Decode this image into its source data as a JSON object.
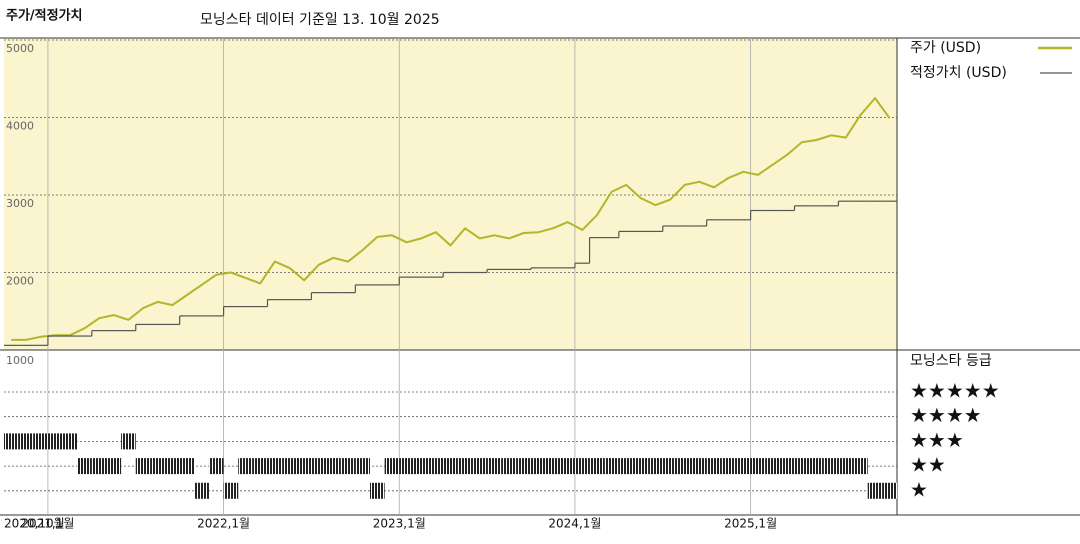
{
  "chart_data": {
    "type": "line",
    "title": "주가/적정가치",
    "subtitle": "모닝스타 데이터 기준일 13. 10월 2025",
    "x": [
      "2020-10",
      "2020-11",
      "2020-12",
      "2021-01",
      "2021-02",
      "2021-03",
      "2021-04",
      "2021-05",
      "2021-06",
      "2021-07",
      "2021-08",
      "2021-09",
      "2021-10",
      "2021-11",
      "2021-12",
      "2022-01",
      "2022-02",
      "2022-03",
      "2022-04",
      "2022-05",
      "2022-06",
      "2022-07",
      "2022-08",
      "2022-09",
      "2022-10",
      "2022-11",
      "2022-12",
      "2023-01",
      "2023-02",
      "2023-03",
      "2023-04",
      "2023-05",
      "2023-06",
      "2023-07",
      "2023-08",
      "2023-09",
      "2023-10",
      "2023-11",
      "2023-12",
      "2024-01",
      "2024-02",
      "2024-03",
      "2024-04",
      "2024-05",
      "2024-06",
      "2024-07",
      "2024-08",
      "2024-09",
      "2024-10",
      "2024-11",
      "2024-12",
      "2025-01",
      "2025-02",
      "2025-03",
      "2025-04",
      "2025-05",
      "2025-06",
      "2025-07",
      "2025-08",
      "2025-09",
      "2025-10"
    ],
    "series": [
      {
        "name": "주가 (USD)",
        "color": "#b3b52a",
        "step": false,
        "values": [
          1130,
          1130,
          1170,
          1190,
          1190,
          1280,
          1410,
          1450,
          1390,
          1540,
          1620,
          1580,
          1710,
          1840,
          1970,
          2000,
          1930,
          1860,
          2140,
          2060,
          1900,
          2100,
          2190,
          2140,
          2290,
          2460,
          2480,
          2390,
          2440,
          2520,
          2350,
          2570,
          2440,
          2480,
          2440,
          2510,
          2520,
          2570,
          2650,
          2550,
          2740,
          3040,
          3130,
          2960,
          2870,
          2940,
          3130,
          3170,
          3100,
          3220,
          3300,
          3260,
          3390,
          3520,
          3680,
          3710,
          3770,
          3740,
          4030,
          4250,
          3990
        ]
      },
      {
        "name": "적정가치 (USD)",
        "color": "#555555",
        "step": true,
        "values": [
          1060,
          1060,
          1060,
          1180,
          1180,
          1180,
          1250,
          1250,
          1250,
          1330,
          1330,
          1330,
          1440,
          1440,
          1440,
          1560,
          1560,
          1560,
          1650,
          1650,
          1650,
          1740,
          1740,
          1740,
          1840,
          1840,
          1840,
          1940,
          1940,
          1940,
          2000,
          2000,
          2000,
          2040,
          2040,
          2040,
          2060,
          2060,
          2060,
          2120,
          2450,
          2450,
          2530,
          2530,
          2530,
          2600,
          2600,
          2600,
          2680,
          2680,
          2680,
          2800,
          2800,
          2800,
          2860,
          2860,
          2860,
          2920,
          2920,
          2920,
          2920
        ]
      }
    ],
    "ylim": [
      1000,
      5000
    ],
    "yticks": [
      2000,
      3000,
      4000,
      5000
    ],
    "xticks": [
      {
        "value": "2020-10",
        "label": "2020,10월"
      },
      {
        "value": "2021-01",
        "label": "2021,1월"
      },
      {
        "value": "2022-01",
        "label": "2022,1월"
      },
      {
        "value": "2023-01",
        "label": "2023,1월"
      },
      {
        "value": "2024-01",
        "label": "2024,1월"
      },
      {
        "value": "2025-01",
        "label": "2025,1월"
      }
    ],
    "grid": true,
    "ratings": {
      "title": "모닝스타 등급",
      "axis_label": "1000",
      "levels": [
        5,
        4,
        3,
        2,
        1
      ],
      "labels": [
        "★★★★★",
        "★★★★",
        "★★★",
        "★★",
        "★"
      ],
      "color": "#222222",
      "values": [
        3,
        3,
        3,
        3,
        3,
        2,
        2,
        2,
        3,
        2,
        2,
        2,
        2,
        1,
        2,
        1,
        2,
        2,
        2,
        2,
        2,
        2,
        2,
        2,
        2,
        1,
        2,
        2,
        2,
        2,
        2,
        2,
        2,
        2,
        2,
        2,
        2,
        2,
        2,
        2,
        2,
        2,
        2,
        2,
        2,
        2,
        2,
        2,
        2,
        2,
        2,
        2,
        2,
        2,
        2,
        2,
        2,
        2,
        2,
        1,
        1
      ]
    }
  }
}
